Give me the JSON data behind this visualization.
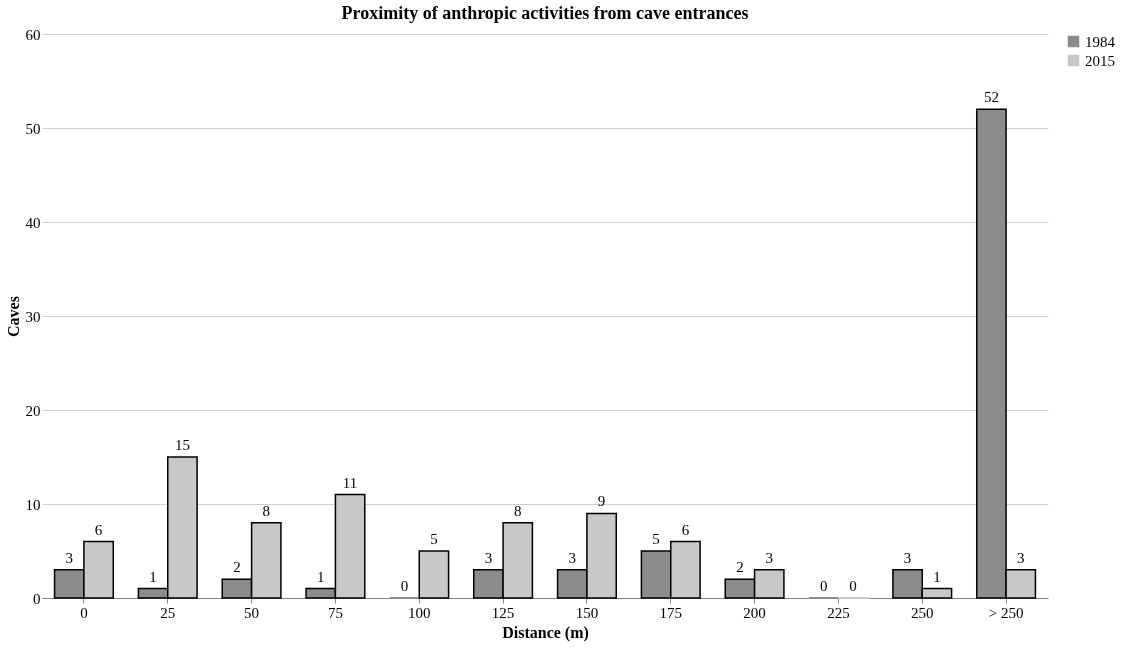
{
  "chart_data": {
    "type": "bar",
    "title": "Proximity of anthropic activities from cave entrances",
    "xlabel": "Distance (m)",
    "ylabel": "Caves",
    "categories": [
      "0",
      "25",
      "50",
      "75",
      "100",
      "125",
      "150",
      "175",
      "200",
      "225",
      "250",
      "> 250"
    ],
    "series": [
      {
        "name": "1984",
        "color": "#8c8c8c",
        "values": [
          3,
          1,
          2,
          1,
          0,
          3,
          3,
          5,
          2,
          0,
          3,
          52
        ]
      },
      {
        "name": "2015",
        "color": "#c8c8c8",
        "values": [
          6,
          15,
          8,
          11,
          5,
          8,
          9,
          6,
          3,
          0,
          1,
          3
        ]
      }
    ],
    "ylim": [
      0,
      60
    ],
    "yticks": [
      0,
      10,
      20,
      30,
      40,
      50,
      60
    ],
    "grid": "y",
    "legend": "right",
    "data_labels": true
  }
}
